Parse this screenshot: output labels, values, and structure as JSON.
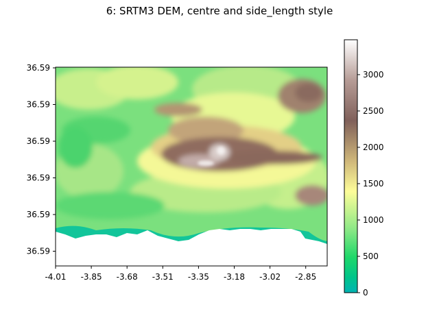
{
  "chart_data": {
    "type": "heatmap",
    "title": "6: SRTM3 DEM, centre and side_length style",
    "xlabel": "",
    "ylabel": "",
    "x_tick_labels": [
      "-4.01",
      "-3.85",
      "-3.68",
      "-3.51",
      "-3.35",
      "-3.18",
      "-3.02",
      "-2.85"
    ],
    "y_tick_labels": [
      "36.59",
      "36.59",
      "36.59",
      "36.59",
      "36.59",
      "36.59"
    ],
    "colormap": "terrain",
    "colorbar": {
      "ticks": [
        0,
        500,
        1000,
        1500,
        2000,
        2500,
        3000
      ],
      "range": [
        0,
        3480
      ]
    },
    "legend": "none",
    "grid": false
  }
}
